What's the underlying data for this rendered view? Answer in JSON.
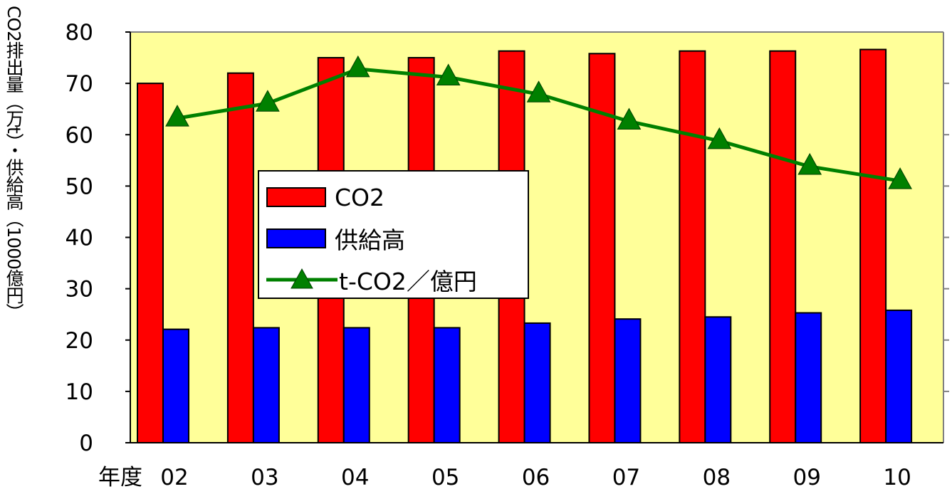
{
  "chart_data": {
    "type": "bar",
    "x_prefix": "年度",
    "categories": [
      "02",
      "03",
      "04",
      "05",
      "06",
      "07",
      "08",
      "09",
      "10"
    ],
    "ylabel": "CO2排出量（万t）・供給高（1000億円）",
    "ylim": [
      0,
      80
    ],
    "yticks": [
      0,
      10,
      20,
      30,
      40,
      50,
      60,
      70,
      80
    ],
    "grid": false,
    "legend_placement": "center-left",
    "background": "#ffff99",
    "series": [
      {
        "name": "CO2",
        "kind": "bar",
        "color": "#ff0000",
        "values": [
          70,
          72,
          75,
          75,
          76.3,
          75.8,
          76.3,
          76.3,
          76.6
        ]
      },
      {
        "name": "供給高",
        "kind": "bar",
        "color": "#0000ff",
        "values": [
          22.1,
          22.4,
          22.4,
          22.4,
          23.3,
          24.1,
          24.5,
          25.3,
          25.8
        ]
      },
      {
        "name": "t-CO2／億円",
        "kind": "line",
        "marker": "triangle",
        "color": "#008000",
        "values": [
          63.2,
          66.1,
          72.8,
          71.2,
          67.9,
          62.6,
          58.8,
          53.8,
          51
        ]
      }
    ]
  }
}
